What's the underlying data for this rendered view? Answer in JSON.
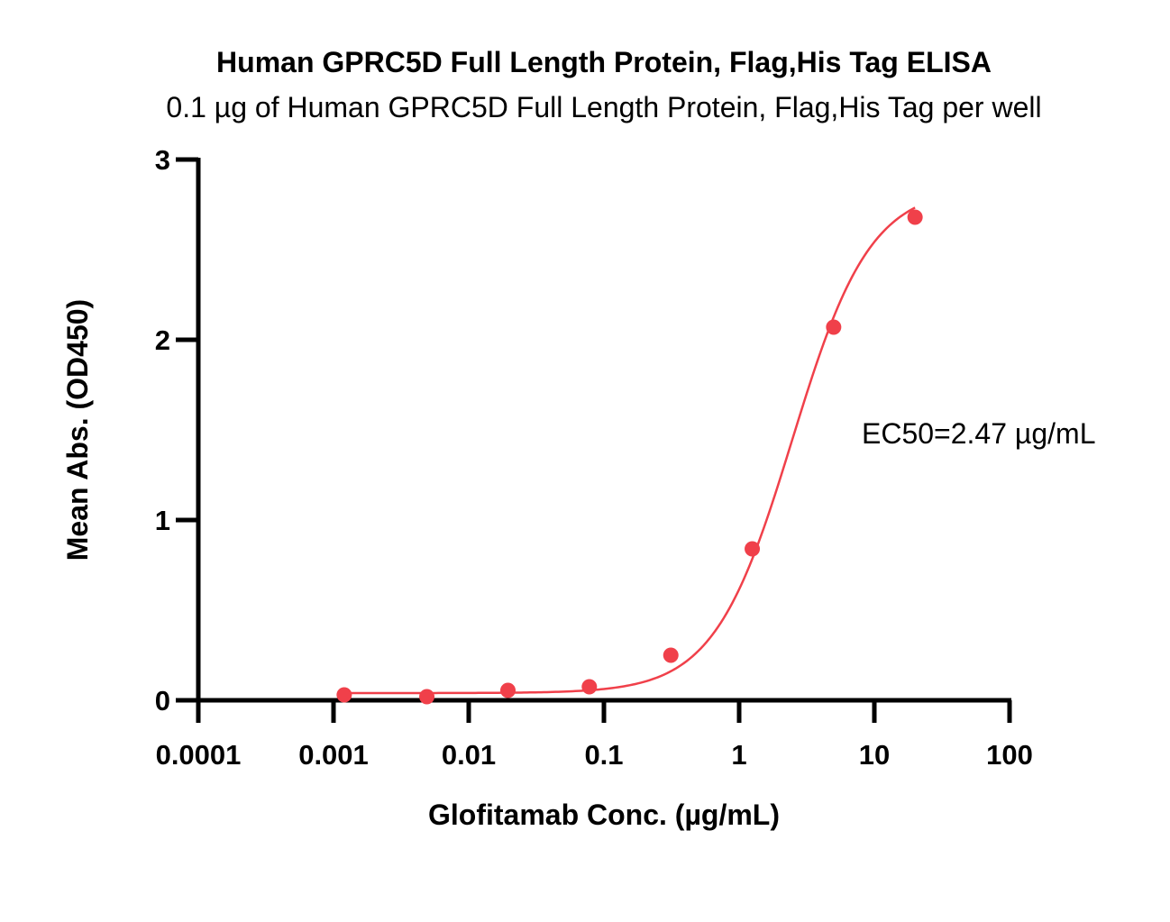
{
  "chart_data": {
    "type": "scatter",
    "title": "Human GPRC5D Full Length Protein, Flag,His Tag ELISA",
    "subtitle": "0.1 µg of Human GPRC5D Full Length Protein, Flag,His Tag per well",
    "xlabel": "Glofitamab Conc. (µg/mL)",
    "ylabel": "Mean Abs. (OD450)",
    "xscale": "log",
    "xlim": [
      0.0001,
      100
    ],
    "ylim": [
      0,
      3
    ],
    "x_ticks": [
      "0.0001",
      "0.001",
      "0.01",
      "0.1",
      "1",
      "10",
      "100"
    ],
    "y_ticks": [
      "0",
      "1",
      "2",
      "3"
    ],
    "grid": false,
    "color": "#f0404a",
    "series": [
      {
        "x": [
          0.0012,
          0.0049,
          0.0195,
          0.078,
          0.3125,
          1.25,
          5,
          20
        ],
        "y": [
          0.03,
          0.02,
          0.055,
          0.075,
          0.25,
          0.84,
          2.07,
          2.68
        ]
      }
    ],
    "fit_curve": {
      "model": "4PL",
      "bottom": 0.04,
      "top": 2.85,
      "ec50": 2.47,
      "hill": 1.5
    },
    "annotation": "EC50=2.47 µg/mL"
  }
}
